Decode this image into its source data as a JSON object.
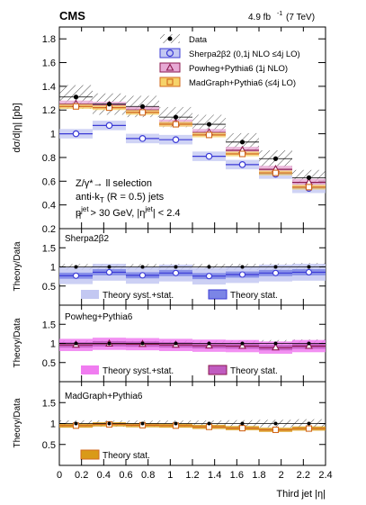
{
  "header": {
    "experiment": "CMS",
    "lumi": "4.9 fb",
    "lumi_sup": "-1",
    "energy": "(7 TeV)"
  },
  "main_panel": {
    "ylabel": "dσ/d|η| [pb]",
    "yticks": [
      "0.2",
      "0.4",
      "0.6",
      "0.8",
      "1",
      "1.2",
      "1.4",
      "1.6",
      "1.8"
    ],
    "selection": {
      "line1": "Z/γ*→ ll selection",
      "line2": "anti-k",
      "line2_sub": "T",
      "line2_rest": " (R = 0.5) jets",
      "line3_p": "p",
      "line3_sup": "jet",
      "line3_sub": "T",
      "line3_mid": " > 30 GeV, |η",
      "line3_sup2": "jet",
      "line3_end": "| < 2.4"
    },
    "legend": [
      {
        "label": "Data"
      },
      {
        "label": "Sherpa2β2 (0,1j NLO ≤4j LO)"
      },
      {
        "label": "Powheg+Pythia6 (1j NLO)"
      },
      {
        "label": "MadGraph+Pythia6 (≤4j LO)"
      }
    ]
  },
  "ratio_panels": [
    {
      "title": "Sherpa2β2",
      "ylabel": "Theory/Data",
      "legend_a": "Theory syst.+stat.",
      "legend_b": "Theory stat."
    },
    {
      "title": "Powheg+Pythia6",
      "ylabel": "Theory/Data",
      "legend_a": "Theory syst.+stat.",
      "legend_b": "Theory stat."
    },
    {
      "title": "MadGraph+Pythia6",
      "ylabel": "Theory/Data",
      "legend_a": "",
      "legend_b": "Theory stat."
    }
  ],
  "ratio_yticks": [
    "0.5",
    "1",
    "1.5"
  ],
  "xaxis": {
    "label": "Third jet |η|",
    "ticks": [
      "0",
      "0.2",
      "0.4",
      "0.6",
      "0.8",
      "1",
      "1.2",
      "1.4",
      "1.6",
      "1.8",
      "2",
      "2.2",
      "2.4"
    ]
  },
  "colors": {
    "sherpa": "#3b3bd6",
    "sherpa_syst": "#c3c8f2",
    "sherpa_stat": "#7b85e6",
    "powheg": "#8b1a4f",
    "powheg_syst": "#f07cf0",
    "powheg_stat": "#c05cc0",
    "madgraph": "#d2691e",
    "madgraph_stat": "#d99a18",
    "data": "#000000"
  },
  "chart_data": {
    "type": "bar",
    "title": "",
    "xlabel": "Third jet |η|",
    "ylabel": "dσ/d|η| [pb]",
    "xlim": [
      0,
      2.4
    ],
    "ylim": [
      0.2,
      1.9
    ],
    "bin_edges": [
      0,
      0.3,
      0.6,
      0.9,
      1.2,
      1.5,
      1.8,
      2.1,
      2.4
    ],
    "series": [
      {
        "name": "Data",
        "values": [
          1.31,
          1.25,
          1.23,
          1.14,
          1.08,
          0.93,
          0.79,
          0.63
        ],
        "syst": [
          0.1,
          0.09,
          0.09,
          0.085,
          0.08,
          0.075,
          0.07,
          0.065
        ]
      },
      {
        "name": "Sherpa2β2 (0,1j NLO ≤4j LO)",
        "values": [
          1.0,
          1.07,
          0.96,
          0.95,
          0.81,
          0.74,
          0.66,
          0.54
        ]
      },
      {
        "name": "Powheg+Pythia6 (1j NLO)",
        "values": [
          1.25,
          1.24,
          1.2,
          1.09,
          1.01,
          0.86,
          0.7,
          0.59
        ]
      },
      {
        "name": "MadGraph+Pythia6 (≤4j LO)",
        "values": [
          1.23,
          1.22,
          1.18,
          1.08,
          0.99,
          0.83,
          0.67,
          0.55
        ]
      }
    ],
    "ratios": {
      "Sherpa2β2": [
        0.77,
        0.86,
        0.78,
        0.84,
        0.76,
        0.8,
        0.84,
        0.86
      ],
      "Powheg+Pythia6": [
        0.96,
        0.99,
        0.98,
        0.96,
        0.94,
        0.93,
        0.89,
        0.93
      ],
      "MadGraph+Pythia6": [
        0.95,
        0.98,
        0.96,
        0.95,
        0.92,
        0.89,
        0.85,
        0.88
      ]
    },
    "ratio_ylim": [
      0,
      2
    ]
  }
}
